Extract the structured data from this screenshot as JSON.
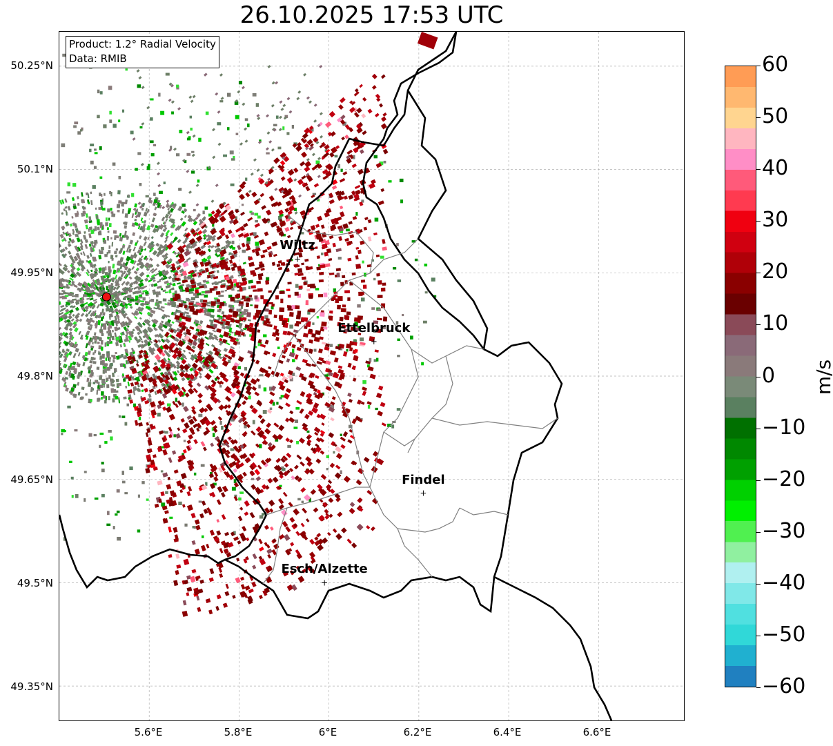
{
  "title": "26.10.2025 17:53 UTC",
  "info": {
    "product": "Product: 1.2° Radial Velocity",
    "data": "Data: RMIB"
  },
  "axes": {
    "lat_ticks": [
      "50.25°N",
      "50.1°N",
      "49.95°N",
      "49.8°N",
      "49.65°N",
      "49.5°N",
      "49.35°N"
    ],
    "lon_ticks": [
      "5.6°E",
      "5.8°E",
      "6°E",
      "6.2°E",
      "6.4°E",
      "6.6°E"
    ],
    "lat_values": [
      50.25,
      50.1,
      49.95,
      49.8,
      49.65,
      49.5,
      49.35
    ],
    "lon_values": [
      5.6,
      5.8,
      6.0,
      6.2,
      6.4,
      6.6
    ],
    "lon_range": [
      5.4,
      6.79
    ],
    "lat_range": [
      49.3,
      50.3
    ],
    "grid": true
  },
  "cities": [
    {
      "name": "Wiltz",
      "lon": 5.93,
      "lat": 49.97
    },
    {
      "name": "Ettelbruck",
      "lon": 6.1,
      "lat": 49.85
    },
    {
      "name": "Findel",
      "lon": 6.21,
      "lat": 49.63
    },
    {
      "name": "Esch/Alzette",
      "lon": 5.99,
      "lat": 49.5
    }
  ],
  "radar_site": {
    "lon": 5.505,
    "lat": 49.915
  },
  "colorbar": {
    "label": "m/s",
    "min": -60,
    "max": 60,
    "ticks": [
      "60",
      "50",
      "40",
      "30",
      "20",
      "10",
      "0",
      "−10",
      "−20",
      "−30",
      "−40",
      "−50",
      "−60"
    ],
    "tick_values": [
      60,
      50,
      40,
      30,
      20,
      10,
      0,
      -10,
      -20,
      -30,
      -40,
      -50,
      -60
    ],
    "colors": [
      "#ff9c55",
      "#ffb870",
      "#ffd590",
      "#ffb6c0",
      "#ff8ec6",
      "#ff5a7a",
      "#ff3a50",
      "#f00010",
      "#d00010",
      "#b00008",
      "#8a0000",
      "#6a0000",
      "#8a4a58",
      "#8a6a78",
      "#8a7a7a",
      "#7a8a78",
      "#5a8060",
      "#007000",
      "#008800",
      "#00a000",
      "#00d000",
      "#00f000",
      "#50f050",
      "#90f0a0",
      "#b0f0f0",
      "#80e8e8",
      "#50e0e0",
      "#30d8d8",
      "#20b0d0",
      "#2080c0"
    ]
  }
}
